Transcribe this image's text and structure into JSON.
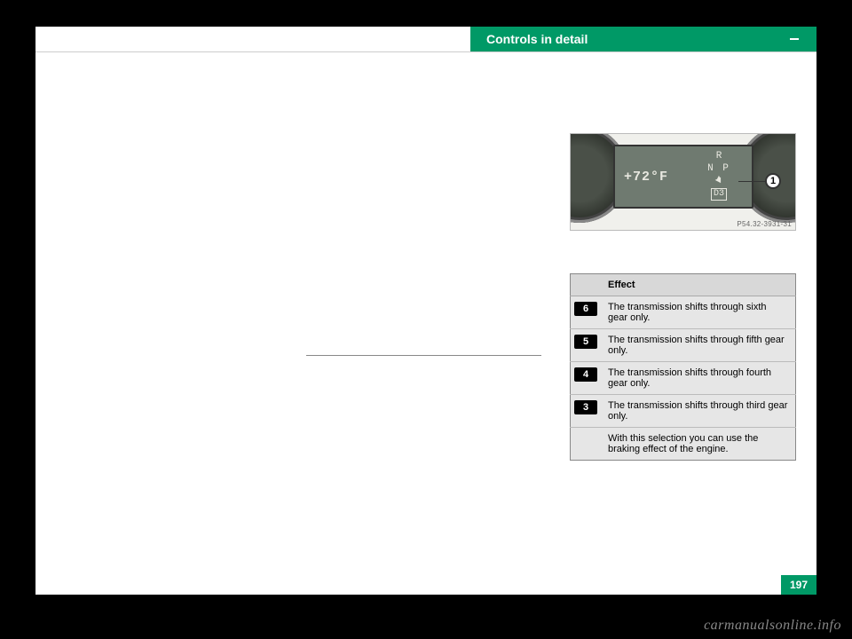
{
  "header": {
    "tab_label": "Controls in detail"
  },
  "cluster": {
    "temp": "+72°F",
    "gear_r": "R",
    "gear_np": "N P",
    "gear_sel": "D3",
    "np_marker": "◄",
    "callout_num": "1",
    "code": "P54.32-3931-31"
  },
  "table": {
    "header": "Effect",
    "rows": [
      {
        "badge": "6",
        "text": "The transmission shifts through sixth gear only."
      },
      {
        "badge": "5",
        "text": "The transmission shifts through fifth gear only."
      },
      {
        "badge": "4",
        "text": "The transmission shifts through fourth gear only."
      },
      {
        "badge": "3",
        "text": "The transmission shifts through third gear only."
      }
    ],
    "extra_row": "With this selection you can use the braking effect of the engine."
  },
  "page_number": "197",
  "watermark": "carmanualsonline.info"
}
